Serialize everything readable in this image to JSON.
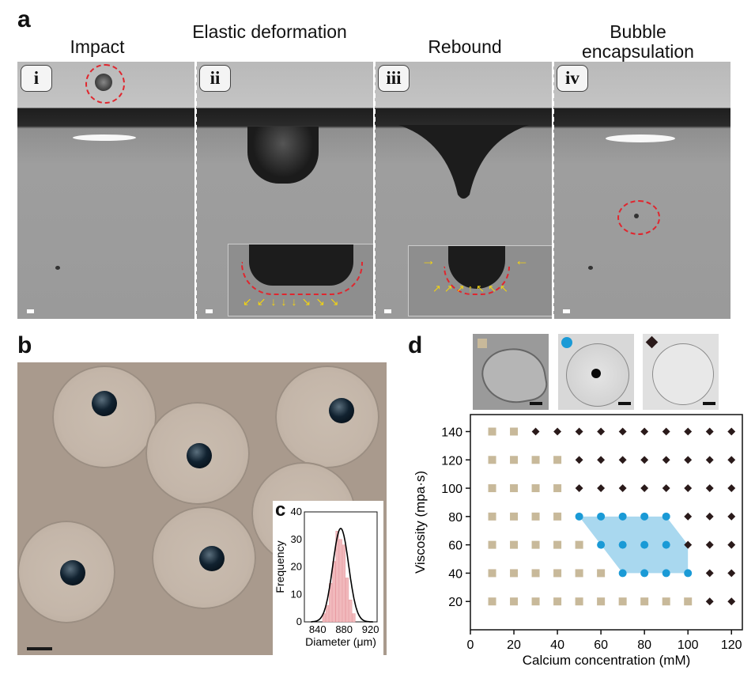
{
  "panel_a": {
    "letter": "a",
    "frames": [
      {
        "roman": "i",
        "title": "Impact"
      },
      {
        "roman": "ii",
        "title": "Elastic deformation"
      },
      {
        "roman": "iii",
        "title": "Rebound"
      },
      {
        "roman": "iv",
        "title": "Bubble encapsulation"
      }
    ]
  },
  "panel_b": {
    "letter": "b"
  },
  "panel_c": {
    "letter": "c",
    "chart_data": {
      "type": "bar",
      "xlabel": "Diameter (μm)",
      "ylabel": "Frequency",
      "xticks": [
        "840",
        "880",
        "920"
      ],
      "yticks": [
        "0",
        "10",
        "20",
        "30",
        "40"
      ],
      "xlim": [
        820,
        930
      ],
      "ylim": [
        0,
        40
      ],
      "bins": [
        850,
        855,
        860,
        865,
        870,
        875,
        880,
        885,
        890,
        895
      ],
      "counts": [
        3,
        6,
        14,
        22,
        33,
        30,
        28,
        16,
        8,
        3
      ],
      "fit_peak": {
        "x": 875,
        "y": 34
      },
      "bar_color": "#f1b9bc",
      "fit_color": "#000000"
    }
  },
  "panel_d": {
    "letter": "d",
    "chart_data": {
      "type": "scatter",
      "xlabel": "Calcium concentration (mM)",
      "ylabel": "Viscosity (mpa·s)",
      "xticks": [
        "0",
        "20",
        "40",
        "60",
        "80",
        "100",
        "120"
      ],
      "yticks": [
        "20",
        "40",
        "60",
        "80",
        "100",
        "120",
        "140"
      ],
      "xlim": [
        0,
        125
      ],
      "ylim": [
        0,
        152
      ],
      "series": [
        {
          "marker": "square",
          "color": "#c8b99a",
          "points": [
            [
              10,
              20
            ],
            [
              20,
              20
            ],
            [
              30,
              20
            ],
            [
              40,
              20
            ],
            [
              50,
              20
            ],
            [
              60,
              20
            ],
            [
              70,
              20
            ],
            [
              80,
              20
            ],
            [
              90,
              20
            ],
            [
              100,
              20
            ],
            [
              10,
              40
            ],
            [
              20,
              40
            ],
            [
              30,
              40
            ],
            [
              40,
              40
            ],
            [
              50,
              40
            ],
            [
              60,
              40
            ],
            [
              10,
              60
            ],
            [
              20,
              60
            ],
            [
              30,
              60
            ],
            [
              40,
              60
            ],
            [
              50,
              60
            ],
            [
              10,
              80
            ],
            [
              20,
              80
            ],
            [
              30,
              80
            ],
            [
              40,
              80
            ],
            [
              10,
              100
            ],
            [
              20,
              100
            ],
            [
              30,
              100
            ],
            [
              40,
              100
            ],
            [
              10,
              120
            ],
            [
              20,
              120
            ],
            [
              30,
              120
            ],
            [
              40,
              120
            ],
            [
              10,
              140
            ],
            [
              20,
              140
            ]
          ]
        },
        {
          "marker": "circle",
          "color": "#1a9ad6",
          "points": [
            [
              50,
              80
            ],
            [
              60,
              80
            ],
            [
              70,
              80
            ],
            [
              80,
              80
            ],
            [
              90,
              80
            ],
            [
              60,
              60
            ],
            [
              70,
              60
            ],
            [
              80,
              60
            ],
            [
              90,
              60
            ],
            [
              70,
              40
            ],
            [
              80,
              40
            ],
            [
              90,
              40
            ],
            [
              100,
              40
            ]
          ]
        },
        {
          "marker": "diamond",
          "color": "#2a1a1a",
          "points": [
            [
              30,
              140
            ],
            [
              40,
              140
            ],
            [
              50,
              140
            ],
            [
              60,
              140
            ],
            [
              70,
              140
            ],
            [
              80,
              140
            ],
            [
              90,
              140
            ],
            [
              100,
              140
            ],
            [
              110,
              140
            ],
            [
              120,
              140
            ],
            [
              50,
              120
            ],
            [
              60,
              120
            ],
            [
              70,
              120
            ],
            [
              80,
              120
            ],
            [
              90,
              120
            ],
            [
              100,
              120
            ],
            [
              110,
              120
            ],
            [
              120,
              120
            ],
            [
              50,
              100
            ],
            [
              60,
              100
            ],
            [
              70,
              100
            ],
            [
              80,
              100
            ],
            [
              90,
              100
            ],
            [
              100,
              100
            ],
            [
              110,
              100
            ],
            [
              120,
              100
            ],
            [
              100,
              80
            ],
            [
              110,
              80
            ],
            [
              120,
              80
            ],
            [
              100,
              60
            ],
            [
              110,
              60
            ],
            [
              120,
              60
            ],
            [
              110,
              40
            ],
            [
              120,
              40
            ],
            [
              110,
              20
            ],
            [
              120,
              20
            ]
          ]
        }
      ],
      "region": {
        "color": "#a9d8ef",
        "polygon": [
          [
            50,
            80
          ],
          [
            90,
            80
          ],
          [
            100,
            60
          ],
          [
            100,
            40
          ],
          [
            70,
            40
          ]
        ]
      }
    }
  }
}
